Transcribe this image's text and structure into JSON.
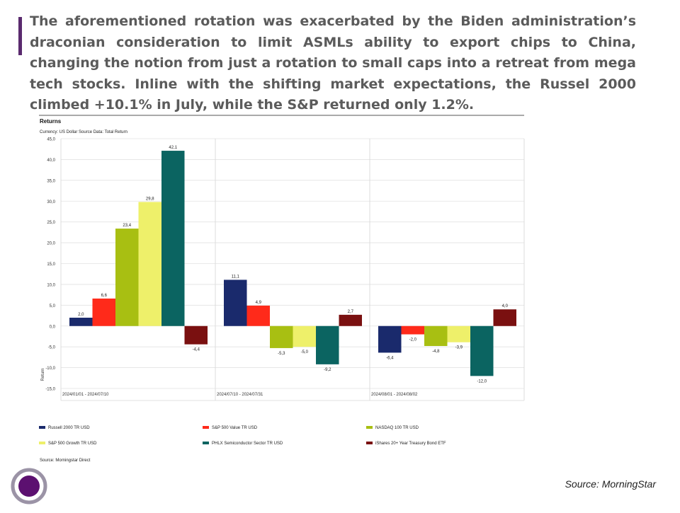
{
  "headline": "The aforementioned rotation was exacerbated by the Biden administration’s draconian consideration to limit ASMLs ability to export chips to China, changing the notion from just a rotation to small caps  into a retreat from mega tech stocks. Inline with the shifting market expectations, the Russel 2000 climbed +10.1% in July, while the S&P returned only 1.2%.",
  "source_note": "Source: MorningStar",
  "accent_color": "#5a2a6e",
  "chart_data": {
    "type": "bar",
    "title": "Returns",
    "subtitle": "Currency: US Dollar    Source Data: Total Return",
    "ylabel": "Return",
    "xlabel": "",
    "ylim": [
      -15,
      45
    ],
    "yticks": [
      "45,0",
      "40,0",
      "35,0",
      "30,0",
      "25,0",
      "20,0",
      "15,0",
      "10,0",
      "5,0",
      "0,0",
      "-5,0",
      "-10,0",
      "-15,0"
    ],
    "grid": true,
    "legend_position": "bottom",
    "categories": [
      "2024/01/01 - 2024/07/10",
      "2024/07/10 - 2024/07/31",
      "2024/08/01 - 2024/08/02"
    ],
    "series": [
      {
        "name": "Russell 2000 TR USD",
        "color": "#1a2a6c",
        "values": [
          2.0,
          11.1,
          -6.4
        ],
        "labels": [
          "2,0",
          "11,1",
          "-6,4"
        ]
      },
      {
        "name": "S&P 500 Value TR USD",
        "color": "#ff2a1a",
        "values": [
          6.6,
          4.9,
          -2.0
        ],
        "labels": [
          "6,6",
          "4,9",
          "-2,0"
        ]
      },
      {
        "name": "NASDAQ 100 TR USD",
        "color": "#a8bf12",
        "values": [
          23.4,
          -5.3,
          -4.8
        ],
        "labels": [
          "23,4",
          "-5,3",
          "-4,8"
        ]
      },
      {
        "name": "S&P 500 Growth TR USD",
        "color": "#eef06a",
        "values": [
          29.8,
          -5.0,
          -3.9
        ],
        "labels": [
          "29,8",
          "-5,0",
          "-3,9"
        ]
      },
      {
        "name": "PHLX Semiconductor Sector TR USD",
        "color": "#0b6461",
        "values": [
          42.1,
          -9.2,
          -12.0
        ],
        "labels": [
          "42,1",
          "-9,2",
          "-12,0"
        ]
      },
      {
        "name": "iShares 20+ Year Treasury Bond ETF",
        "color": "#7a1010",
        "values": [
          -4.4,
          2.7,
          4.0
        ],
        "labels": [
          "-4,4",
          "2,7",
          "4,0"
        ]
      }
    ],
    "footnote": "Source: Morningstar Direct"
  }
}
